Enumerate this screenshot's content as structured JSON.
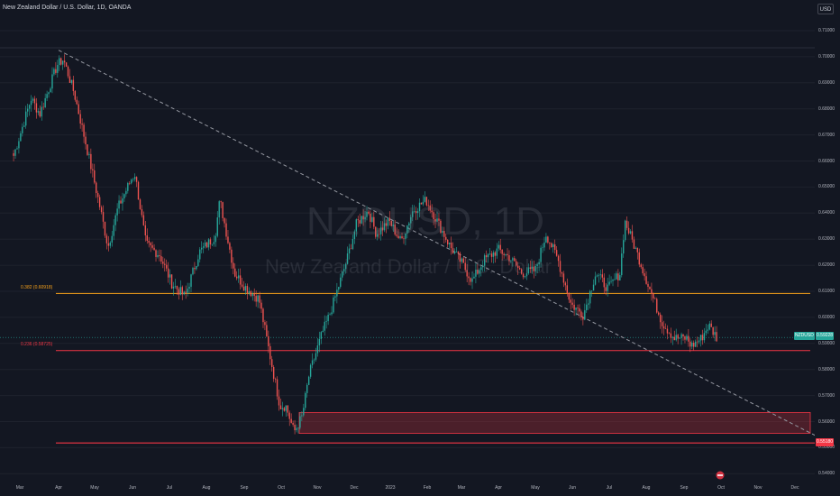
{
  "header": {
    "title": "New Zealand Dollar / U.S. Dollar, 1D, OANDA",
    "currency_button": "USD"
  },
  "watermark": {
    "symbol": "NZDUSD, 1D",
    "description": "New Zealand Dollar / U.S. Dollar"
  },
  "colors": {
    "background": "#131722",
    "up_candle": "#26a69a",
    "down_candle": "#ef5350",
    "fib_0382": "#f7a21b",
    "fib_0236": "#f23645",
    "zone_fill": "#f23645",
    "last_price_tag": "#26a69a",
    "trendline": "#9598a1"
  },
  "fib_levels": [
    {
      "label": "0.382 (0.60918)",
      "price": 0.60918
    },
    {
      "label": "0.236 (0.58725)",
      "price": 0.58725
    }
  ],
  "last_price": {
    "symbol_tag": "NZDUSD",
    "value": "0.59228",
    "price": 0.59228
  },
  "low_tag": {
    "label": "0.55180",
    "price": 0.5518
  },
  "price_axis": {
    "labels": [
      "0.71000",
      "0.70000",
      "0.69000",
      "0.68000",
      "0.67000",
      "0.66000",
      "0.65000",
      "0.64000",
      "0.63000",
      "0.62000",
      "0.61000",
      "0.60000",
      "0.59000",
      "0.58000",
      "0.57000",
      "0.56000",
      "0.55000",
      "0.54000"
    ]
  },
  "time_axis": {
    "labels": [
      "Mar",
      "Apr",
      "May",
      "Jun",
      "Jul",
      "Aug",
      "Sep",
      "Oct",
      "Nov",
      "Dec",
      "2023",
      "Feb",
      "Mar",
      "Apr",
      "May",
      "Jun",
      "Jul",
      "Aug",
      "Sep",
      "Oct",
      "Nov",
      "Dec"
    ]
  },
  "zone": {
    "price_high": 0.5635,
    "price_low": 0.5555
  },
  "chart_data": {
    "type": "candlestick",
    "symbol": "NZDUSD",
    "interval": "1D",
    "price_range": [
      0.535,
      0.714
    ],
    "trendline": {
      "from": {
        "date": "2022-04-01",
        "price": 0.7025
      },
      "to": {
        "date": "2023-12-31",
        "price": 0.5515
      }
    },
    "path": [
      [
        "2022-02-24",
        0.662
      ],
      [
        "2022-03-10",
        0.684
      ],
      [
        "2022-03-17",
        0.678
      ],
      [
        "2022-03-31",
        0.697
      ],
      [
        "2022-04-05",
        0.699
      ],
      [
        "2022-04-14",
        0.686
      ],
      [
        "2022-04-24",
        0.666
      ],
      [
        "2022-05-05",
        0.643
      ],
      [
        "2022-05-12",
        0.627
      ],
      [
        "2022-05-20",
        0.642
      ],
      [
        "2022-05-31",
        0.653
      ],
      [
        "2022-06-03",
        0.655
      ],
      [
        "2022-06-12",
        0.628
      ],
      [
        "2022-06-23",
        0.624
      ],
      [
        "2022-07-03",
        0.613
      ],
      [
        "2022-07-14",
        0.608
      ],
      [
        "2022-07-26",
        0.625
      ],
      [
        "2022-08-08",
        0.631
      ],
      [
        "2022-08-12",
        0.645
      ],
      [
        "2022-08-24",
        0.617
      ],
      [
        "2022-09-01",
        0.612
      ],
      [
        "2022-09-13",
        0.607
      ],
      [
        "2022-09-22",
        0.585
      ],
      [
        "2022-09-30",
        0.566
      ],
      [
        "2022-10-05",
        0.566
      ],
      [
        "2022-10-12",
        0.556
      ],
      [
        "2022-10-19",
        0.562
      ],
      [
        "2022-10-25",
        0.578
      ],
      [
        "2022-11-05",
        0.594
      ],
      [
        "2022-11-11",
        0.601
      ],
      [
        "2022-11-25",
        0.622
      ],
      [
        "2022-12-03",
        0.636
      ],
      [
        "2022-12-13",
        0.641
      ],
      [
        "2022-12-20",
        0.632
      ],
      [
        "2022-12-31",
        0.637
      ],
      [
        "2023-01-10",
        0.629
      ],
      [
        "2023-01-20",
        0.641
      ],
      [
        "2023-01-31",
        0.645
      ],
      [
        "2023-02-08",
        0.638
      ],
      [
        "2023-02-20",
        0.627
      ],
      [
        "2023-03-01",
        0.621
      ],
      [
        "2023-03-10",
        0.614
      ],
      [
        "2023-03-20",
        0.622
      ],
      [
        "2023-04-01",
        0.626
      ],
      [
        "2023-04-10",
        0.623
      ],
      [
        "2023-04-20",
        0.617
      ],
      [
        "2023-05-01",
        0.618
      ],
      [
        "2023-05-10",
        0.632
      ],
      [
        "2023-05-20",
        0.622
      ],
      [
        "2023-05-31",
        0.605
      ],
      [
        "2023-06-10",
        0.601
      ],
      [
        "2023-06-20",
        0.617
      ],
      [
        "2023-06-30",
        0.611
      ],
      [
        "2023-07-10",
        0.617
      ],
      [
        "2023-07-14",
        0.637
      ],
      [
        "2023-07-24",
        0.625
      ],
      [
        "2023-08-03",
        0.612
      ],
      [
        "2023-08-14",
        0.598
      ],
      [
        "2023-08-24",
        0.592
      ],
      [
        "2023-09-03",
        0.592
      ],
      [
        "2023-09-07",
        0.589
      ],
      [
        "2023-09-15",
        0.592
      ],
      [
        "2023-09-21",
        0.597
      ],
      [
        "2023-09-28",
        0.592
      ]
    ]
  }
}
